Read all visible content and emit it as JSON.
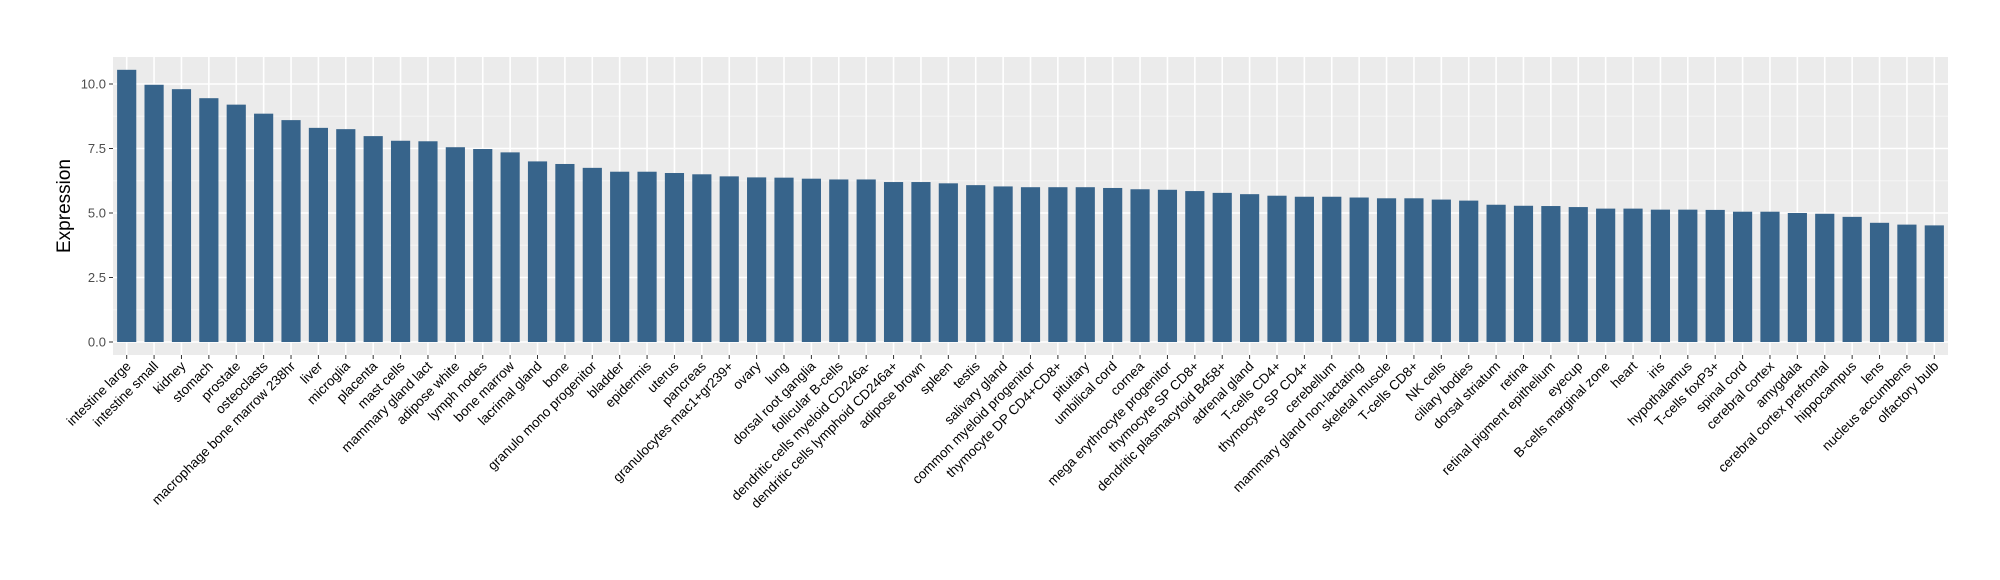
{
  "chart_data": {
    "type": "bar",
    "title": "",
    "xlabel": "",
    "ylabel": "Expression",
    "ylim": [
      -0.5,
      11.0
    ],
    "yticks": [
      0.0,
      2.5,
      5.0,
      7.5,
      10.0
    ],
    "ytick_labels": [
      "0.0",
      "2.5",
      "5.0",
      "7.5",
      "10.0"
    ],
    "grid": true,
    "bar_color": "#37648b",
    "panel_color": "#ebebeb",
    "categories": [
      "intestine large",
      "intestine small",
      "kidney",
      "stomach",
      "prostate",
      "osteoclasts",
      "macrophage bone marrow 238hr",
      "liver",
      "microglia",
      "placenta",
      "mast cells",
      "mammary gland  lact",
      "adipose white",
      "lymph nodes",
      "bone marrow",
      "lacrimal gland",
      "bone",
      "granulo mono progenitor",
      "bladder",
      "epidermis",
      "uterus",
      "pancreas",
      "granulocytes mac1+gr239+",
      "ovary",
      "lung",
      "dorsal root ganglia",
      "follicular B-cells",
      "dendritic cells myeloid CD246a-",
      "dendritic cells lymphoid CD246a+",
      "adipose brown",
      "spleen",
      "testis",
      "salivary gland",
      "common myeloid progenitor",
      "thymocyte DP CD4+CD8+",
      "pituitary",
      "umbilical cord",
      "cornea",
      "mega erythrocyte progenitor",
      "thymocyte SP CD8+",
      "dendritic plasmacytoid B458+",
      "adrenal gland",
      "T-cells CD4+",
      "thymocyte SP CD4+",
      "cerebellum",
      "mammary gland non-lactating",
      "skeletal muscle",
      "T-cells CD8+",
      "NK cells",
      "ciliary bodies",
      "dorsal striatum",
      "retina",
      "retinal pigment epithelium",
      "eyecup",
      "B-cells marginal zone",
      "heart",
      "iris",
      "hypothalamus",
      "T-cells foxP3+",
      "spinal cord",
      "cerebral cortex",
      "amygdala",
      "cerebral cortex prefrontal",
      "hippocampus",
      "lens",
      "nucleus accumbens",
      "olfactory bulb"
    ],
    "values": [
      10.55,
      9.97,
      9.8,
      9.45,
      9.2,
      8.85,
      8.6,
      8.3,
      8.25,
      7.98,
      7.8,
      7.78,
      7.55,
      7.48,
      7.35,
      7.0,
      6.9,
      6.75,
      6.6,
      6.6,
      6.55,
      6.5,
      6.42,
      6.38,
      6.37,
      6.33,
      6.3,
      6.3,
      6.2,
      6.2,
      6.15,
      6.08,
      6.03,
      6.0,
      6.0,
      6.0,
      5.97,
      5.92,
      5.9,
      5.85,
      5.78,
      5.73,
      5.67,
      5.63,
      5.63,
      5.6,
      5.57,
      5.57,
      5.52,
      5.48,
      5.32,
      5.28,
      5.27,
      5.23,
      5.17,
      5.17,
      5.13,
      5.13,
      5.12,
      5.05,
      5.05,
      5.0,
      4.97,
      4.85,
      4.62,
      4.55,
      4.52
    ]
  }
}
